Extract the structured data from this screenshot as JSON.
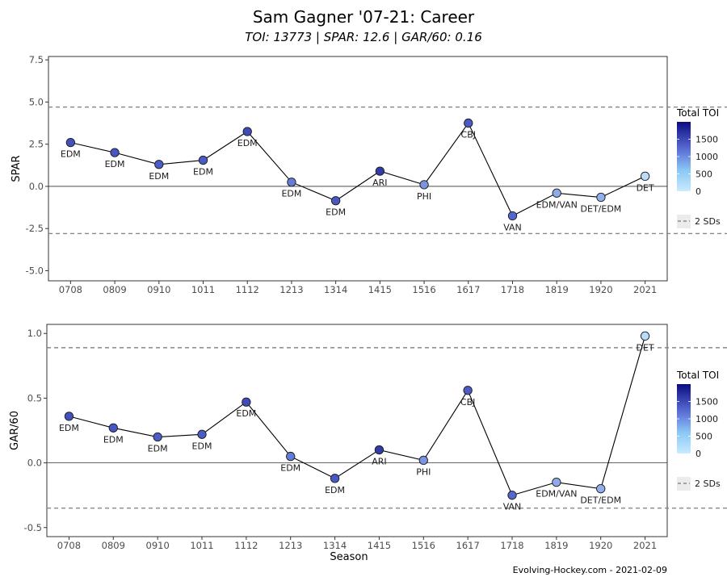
{
  "title": "Sam Gagner '07-21: Career",
  "subtitle": "TOI: 13773 | SPAR: 12.6 | GAR/60: 0.16",
  "credit": "Evolving-Hockey.com - 2021-02-09",
  "legend": {
    "title": "Total TOI",
    "ticks": [
      "1500",
      "1000",
      "500",
      "0"
    ],
    "sd_label": "2 SDs",
    "colors": {
      "high": "#0c0c80",
      "mid": "#5a6fd6",
      "low": "#c8eaff"
    }
  },
  "chart_data": [
    {
      "type": "line",
      "ylabel": "SPAR",
      "xlabel": "",
      "ylim": [
        -5.6,
        7.7
      ],
      "yticks": [
        "7.5",
        "5.0",
        "2.5",
        "0.0",
        "-2.5",
        "-5.0"
      ],
      "ytick_values": [
        7.5,
        5.0,
        2.5,
        0.0,
        -2.5,
        -5.0
      ],
      "sd_lines": [
        4.7,
        -2.8
      ],
      "categories": [
        "0708",
        "0809",
        "0910",
        "1011",
        "1112",
        "1213",
        "1314",
        "1415",
        "1516",
        "1617",
        "1718",
        "1819",
        "1920",
        "2021"
      ],
      "values": [
        2.6,
        2.0,
        1.3,
        1.55,
        3.25,
        0.25,
        -0.85,
        0.9,
        0.1,
        3.75,
        -1.75,
        -0.4,
        -0.65,
        0.6
      ],
      "toi": [
        1300,
        1250,
        1180,
        1200,
        1350,
        900,
        1220,
        1520,
        700,
        1200,
        1080,
        520,
        480,
        120
      ],
      "teams": [
        "EDM",
        "EDM",
        "EDM",
        "EDM",
        "EDM",
        "EDM",
        "EDM",
        "ARI",
        "PHI",
        "CBJ",
        "VAN",
        "EDM/VAN",
        "DET/EDM",
        "DET"
      ]
    },
    {
      "type": "line",
      "ylabel": "GAR/60",
      "xlabel": "Season",
      "ylim": [
        -0.57,
        1.07
      ],
      "yticks": [
        "1.0",
        "0.5",
        "0.0",
        "-0.5"
      ],
      "ytick_values": [
        1.0,
        0.5,
        0.0,
        -0.5
      ],
      "sd_lines": [
        0.89,
        -0.35
      ],
      "categories": [
        "0708",
        "0809",
        "0910",
        "1011",
        "1112",
        "1213",
        "1314",
        "1415",
        "1516",
        "1617",
        "1718",
        "1819",
        "1920",
        "2021"
      ],
      "values": [
        0.36,
        0.27,
        0.2,
        0.22,
        0.47,
        0.05,
        -0.12,
        0.1,
        0.02,
        0.56,
        -0.25,
        -0.15,
        -0.2,
        0.98
      ],
      "toi": [
        1300,
        1250,
        1180,
        1200,
        1350,
        900,
        1220,
        1520,
        700,
        1200,
        1080,
        520,
        480,
        120
      ],
      "teams": [
        "EDM",
        "EDM",
        "EDM",
        "EDM",
        "EDM",
        "EDM",
        "EDM",
        "ARI",
        "PHI",
        "CBJ",
        "VAN",
        "EDM/VAN",
        "DET/EDM",
        "DET"
      ]
    }
  ]
}
